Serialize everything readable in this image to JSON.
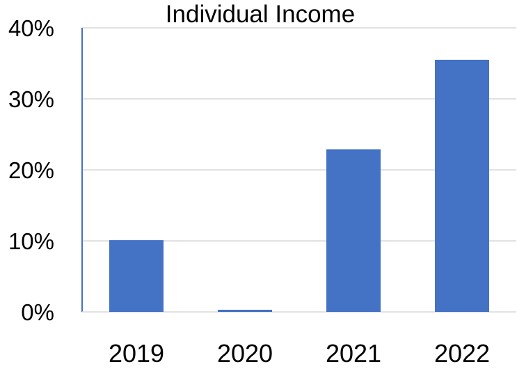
{
  "chart_data": {
    "type": "bar",
    "title": "Individual Income",
    "xlabel": "",
    "ylabel": "",
    "categories": [
      "2019",
      "2020",
      "2021",
      "2022"
    ],
    "values": [
      0.101,
      0.003,
      0.229,
      0.355
    ],
    "ylim": [
      0,
      0.4
    ],
    "yticks": [
      0,
      0.1,
      0.2,
      0.3,
      0.4
    ],
    "ytick_labels": [
      "0%",
      "10%",
      "20%",
      "30%",
      "40%"
    ],
    "grid": true,
    "legend": "none",
    "colors": {
      "bar": "#4472C4",
      "grid": "#D9D9D9",
      "axis": "#4472C4",
      "text": "#000000"
    }
  }
}
